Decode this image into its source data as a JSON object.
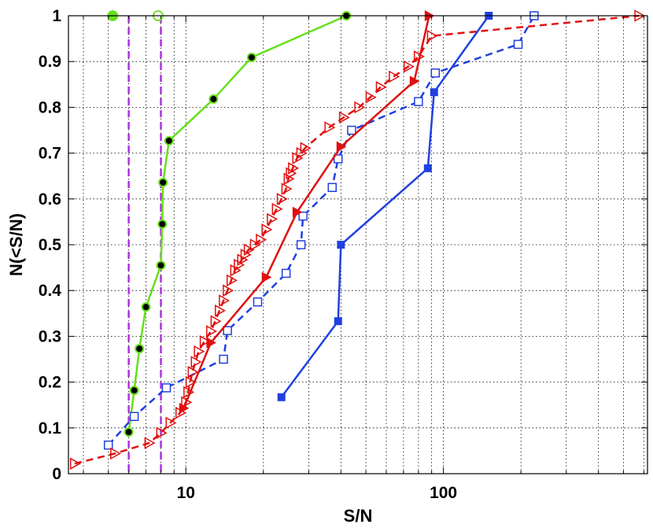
{
  "chart_data": {
    "type": "line",
    "title": "",
    "xlabel": "S/N",
    "ylabel": "N(<S/N)",
    "xscale": "log",
    "xlim": [
      3.5,
      620
    ],
    "ylim": [
      0,
      1
    ],
    "x_ticks": [
      10,
      100
    ],
    "x_tick_labels": [
      "10",
      "100"
    ],
    "y_ticks": [
      0,
      0.1,
      0.2,
      0.3,
      0.4,
      0.5,
      0.6,
      0.7,
      0.8,
      0.9,
      1
    ],
    "y_tick_labels": [
      "0",
      "0.1",
      "0.2",
      "0.3",
      "0.4",
      "0.5",
      "0.6",
      "0.7",
      "0.8",
      "0.9",
      "1"
    ],
    "grid": true,
    "legend": "none",
    "vlines": [
      {
        "x": 6.0,
        "color": "#b030e0",
        "style": "dashed"
      },
      {
        "x": 8.0,
        "color": "#b030e0",
        "style": "dashed"
      }
    ],
    "series": [
      {
        "color": "#66e01a",
        "line": "solid",
        "marker": "circle-black-dot",
        "x": [
          6.0,
          6.3,
          6.6,
          7.0,
          8.0,
          8.1,
          8.15,
          8.6,
          12.8,
          18.0,
          42.0
        ],
        "y": [
          0.091,
          0.182,
          0.273,
          0.364,
          0.455,
          0.545,
          0.636,
          0.727,
          0.818,
          0.909,
          1.0
        ]
      },
      {
        "color": "#2040e0",
        "line": "solid",
        "marker": "filled-square",
        "x": [
          23.5,
          39.0,
          40.0,
          87.0,
          92.0,
          150.0
        ],
        "y": [
          0.167,
          0.333,
          0.5,
          0.667,
          0.833,
          1.0
        ]
      },
      {
        "color": "#2040e0",
        "line": "dashed",
        "marker": "open-square",
        "x": [
          5.0,
          6.3,
          8.4,
          14.0,
          14.5,
          19.0,
          24.5,
          28.0,
          28.5,
          37.0,
          39.0,
          44.0,
          80.0,
          93.0,
          195.0,
          225.0
        ],
        "y": [
          0.0625,
          0.125,
          0.1875,
          0.25,
          0.3125,
          0.375,
          0.4375,
          0.5,
          0.5625,
          0.625,
          0.6875,
          0.75,
          0.8125,
          0.875,
          0.9375,
          1.0
        ]
      },
      {
        "color": "#e01010",
        "line": "solid",
        "marker": "filled-triangle",
        "x": [
          9.8,
          12.5,
          20.5,
          27.0,
          40.0,
          77.0,
          88.0
        ],
        "y": [
          0.143,
          0.286,
          0.429,
          0.571,
          0.714,
          0.857,
          1.0
        ]
      },
      {
        "color": "#e01010",
        "line": "dashed",
        "marker": "open-triangle",
        "x": [
          3.7,
          5.3,
          7.2,
          8.0,
          8.7,
          9.5,
          10.0,
          10.2,
          10.4,
          10.6,
          10.9,
          11.2,
          11.8,
          12.5,
          13.0,
          13.5,
          14.0,
          14.5,
          15.0,
          15.5,
          16.0,
          16.5,
          17.0,
          17.5,
          18.5,
          19.5,
          20.5,
          21.5,
          22.5,
          23.5,
          24.5,
          25.0,
          25.5,
          26.0,
          27.0,
          28.0,
          29.0,
          36.0,
          41.0,
          47.0,
          52.0,
          57.0,
          64.0,
          73.0,
          80.0,
          90.0,
          575.0
        ],
        "y": [
          0.022,
          0.044,
          0.067,
          0.089,
          0.111,
          0.133,
          0.156,
          0.178,
          0.2,
          0.222,
          0.244,
          0.267,
          0.289,
          0.311,
          0.333,
          0.356,
          0.378,
          0.4,
          0.422,
          0.444,
          0.456,
          0.467,
          0.478,
          0.489,
          0.5,
          0.511,
          0.533,
          0.556,
          0.578,
          0.6,
          0.622,
          0.644,
          0.656,
          0.667,
          0.689,
          0.7,
          0.711,
          0.756,
          0.778,
          0.8,
          0.822,
          0.844,
          0.867,
          0.889,
          0.911,
          0.956,
          1.0
        ]
      }
    ],
    "top_markers": [
      {
        "x": 5.2,
        "y": 1.0,
        "color": "#66e01a",
        "fill": true
      },
      {
        "x": 7.8,
        "y": 1.0,
        "color": "#66e01a",
        "fill": false
      }
    ]
  }
}
